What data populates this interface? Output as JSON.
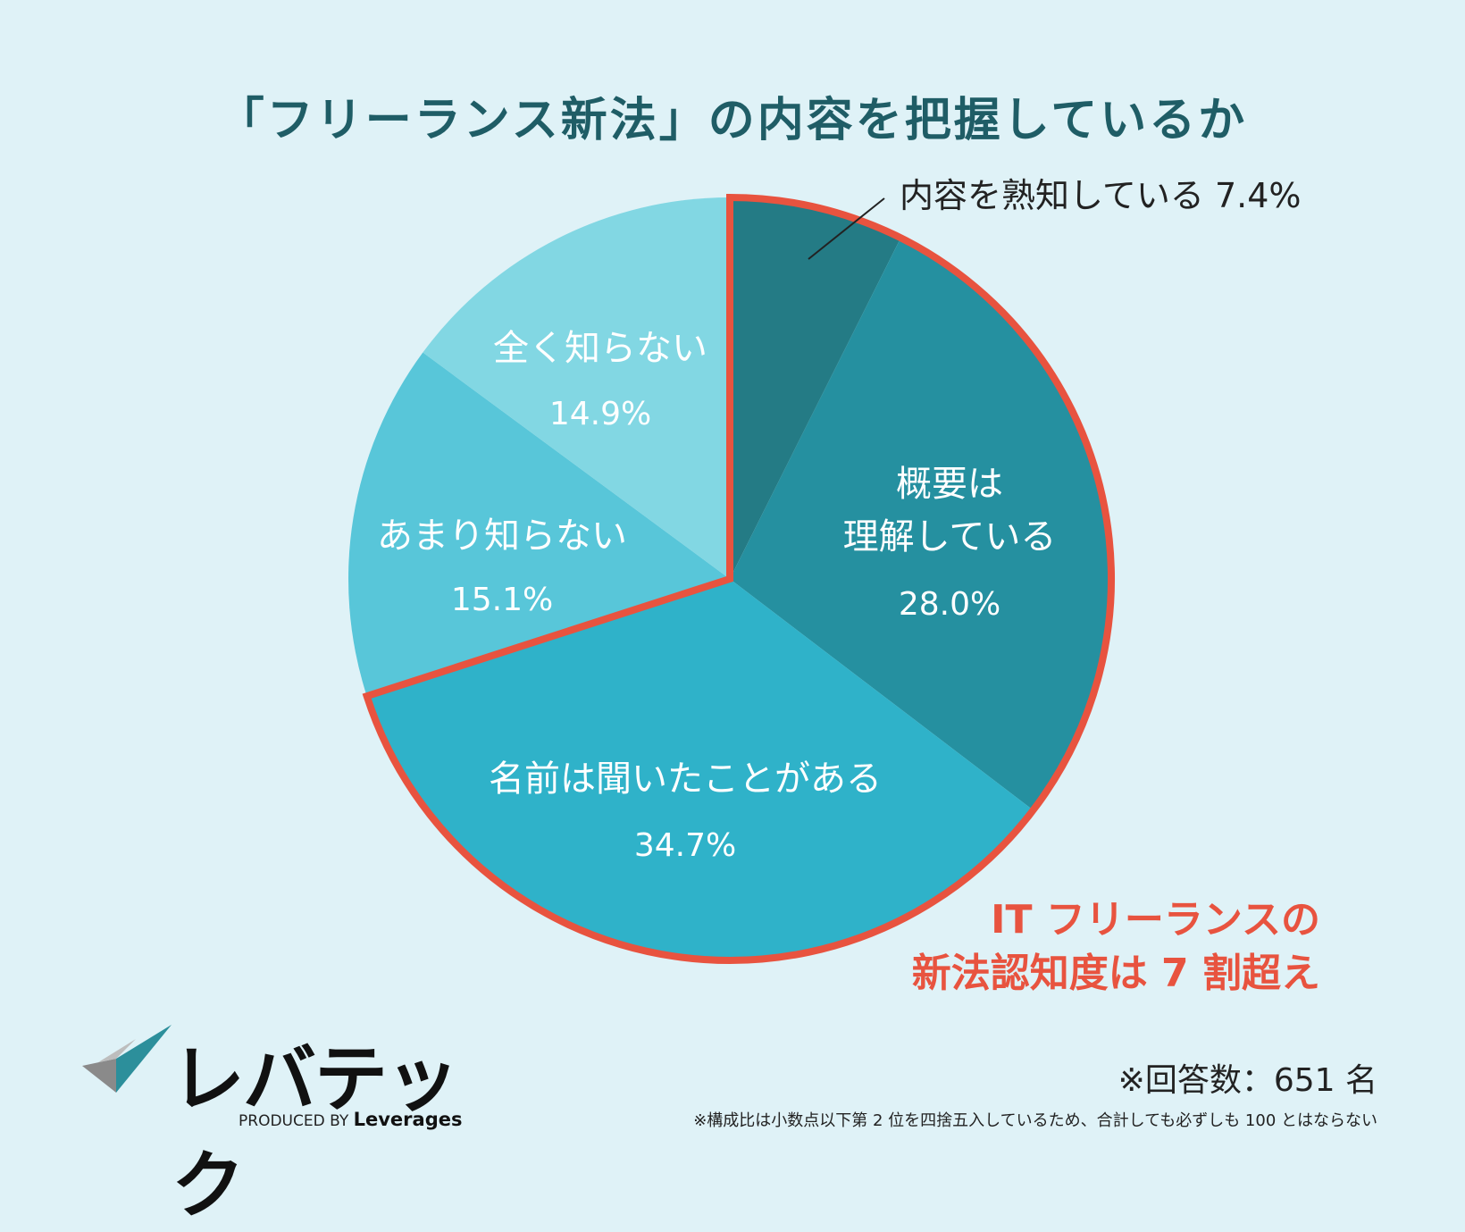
{
  "chart_data": {
    "type": "pie",
    "title": "「フリーランス新法」の内容を把握しているか",
    "slices": [
      {
        "label": "内容を熟知している",
        "value": 7.4,
        "value_label": "7.4%",
        "color": "#247b85"
      },
      {
        "label": "概要は理解している",
        "value": 28.0,
        "value_label": "28.0%",
        "color": "#2590a0"
      },
      {
        "label": "名前は聞いたことがある",
        "value": 34.7,
        "value_label": "34.7%",
        "color": "#2fb2c9"
      },
      {
        "label": "あまり知らない",
        "value": 15.1,
        "value_label": "15.1%",
        "color": "#58c6d9"
      },
      {
        "label": "全く知らない",
        "value": 14.9,
        "value_label": "14.9%",
        "color": "#82d7e3"
      }
    ],
    "highlight": {
      "slices": [
        "内容を熟知している",
        "概要は理解している",
        "名前は聞いたことがある"
      ],
      "color": "#e8533f"
    }
  },
  "callout": {
    "line1": "IT フリーランスの",
    "line2": "新法認知度は 7 割超え"
  },
  "brand": {
    "name": "レバテック",
    "produced_by": "PRODUCED BY",
    "company": "Leverages"
  },
  "respondents": "※回答数：651 名",
  "footnote": "※構成比は小数点以下第 2 位を四捨五入しているため、合計しても必ずしも 100 とはならない"
}
